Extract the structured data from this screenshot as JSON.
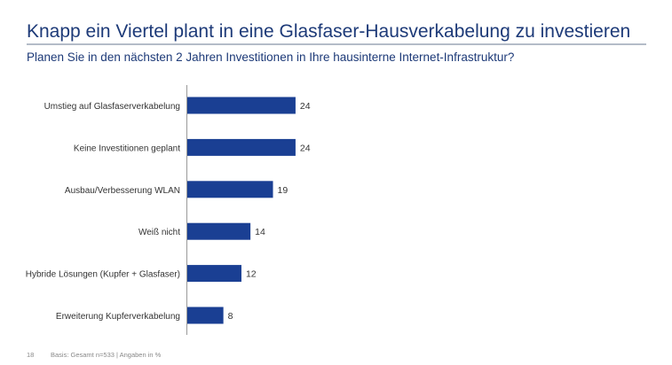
{
  "title": "Knapp ein Viertel plant in eine Glasfaser-Hausverkabelung zu investieren",
  "subtitle": "Planen Sie in den nächsten 2 Jahren Investitionen in Ihre hausinterne Internet-Infrastruktur?",
  "footer": {
    "page": "18",
    "basis": "Basis: Gesamt n=533 | Angaben in %"
  },
  "colors": {
    "bar": "#1a3f93",
    "text": "#1d3a78"
  },
  "chart_data": {
    "type": "bar",
    "orientation": "horizontal",
    "categories": [
      "Umstieg auf Glasfaserverkabelung",
      "Keine Investitionen geplant",
      "Ausbau/Verbesserung WLAN",
      "Weiß nicht",
      "Hybride Lösungen (Kupfer + Glasfaser)",
      "Erweiterung Kupferverkabelung"
    ],
    "values": [
      24,
      24,
      19,
      14,
      12,
      8
    ],
    "data_labels": [
      "24",
      "24",
      "19",
      "14",
      "12",
      "8"
    ],
    "xlim": [
      0,
      100
    ],
    "grid": false
  }
}
